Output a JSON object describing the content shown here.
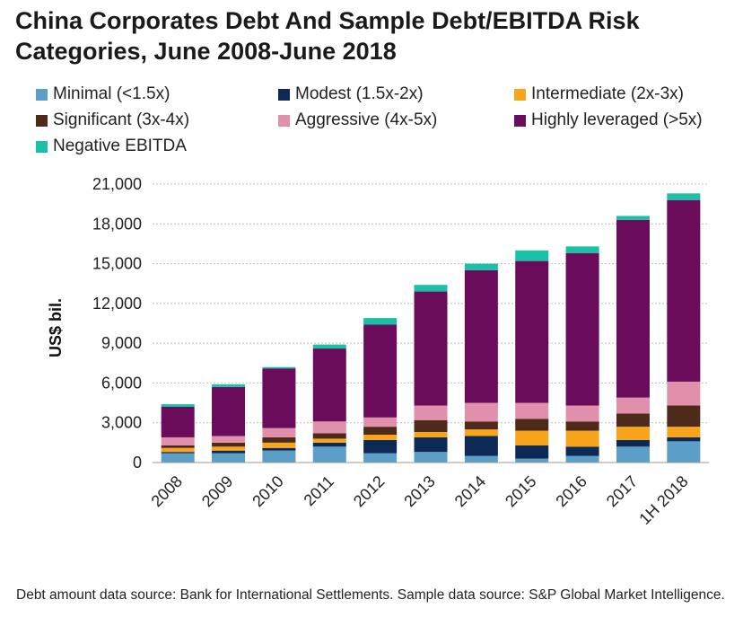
{
  "title": "China Corporates Debt And Sample Debt/EBITDA Risk Categories, June 2008-June 2018",
  "source_note": "Debt amount data source: Bank for International Settlements. Sample data source: S&P Global Market Intelligence.",
  "chart_data": {
    "type": "bar",
    "stacked": true,
    "title": "China Corporates Debt And Sample Debt/EBITDA Risk Categories, June 2008-June 2018",
    "xlabel": "",
    "ylabel": "US$ bil.",
    "ylim": [
      0,
      21000
    ],
    "yticks": [
      0,
      3000,
      6000,
      9000,
      12000,
      15000,
      18000,
      21000
    ],
    "ytick_labels": [
      "0",
      "3,000",
      "6,000",
      "9,000",
      "12,000",
      "15,000",
      "18,000",
      "21,000"
    ],
    "grid": true,
    "legend_position": "top",
    "categories": [
      "2008",
      "2009",
      "2010",
      "2011",
      "2012",
      "2013",
      "2014",
      "2015",
      "2016",
      "2017",
      "1H 2018"
    ],
    "series": [
      {
        "name": "Minimal (<1.5x)",
        "color": "#5b9ec7",
        "values": [
          700,
          700,
          900,
          1200,
          700,
          800,
          500,
          300,
          500,
          1200,
          1600
        ]
      },
      {
        "name": "Modest (1.5x-2x)",
        "color": "#0d2a56",
        "values": [
          100,
          200,
          200,
          300,
          1000,
          1100,
          1500,
          1000,
          700,
          500,
          300
        ]
      },
      {
        "name": "Intermediate (2x-3x)",
        "color": "#f8a51b",
        "values": [
          300,
          300,
          400,
          300,
          400,
          400,
          500,
          1100,
          1200,
          1000,
          800
        ]
      },
      {
        "name": "Significant (3x-4x)",
        "color": "#4e2a1a",
        "values": [
          200,
          300,
          400,
          400,
          600,
          900,
          600,
          900,
          700,
          1000,
          1600
        ]
      },
      {
        "name": "Aggressive (4x-5x)",
        "color": "#e090aa",
        "values": [
          600,
          500,
          700,
          900,
          700,
          1100,
          1400,
          1200,
          1200,
          1200,
          1800
        ]
      },
      {
        "name": "Highly leveraged (>5x)",
        "color": "#6b0b5c",
        "values": [
          2300,
          3700,
          4500,
          5500,
          7000,
          8600,
          10000,
          10700,
          11500,
          13400,
          13700
        ]
      },
      {
        "name": "Negative EBITDA",
        "color": "#1cc0a6",
        "values": [
          200,
          200,
          100,
          300,
          500,
          500,
          500,
          800,
          500,
          300,
          500
        ]
      }
    ]
  }
}
